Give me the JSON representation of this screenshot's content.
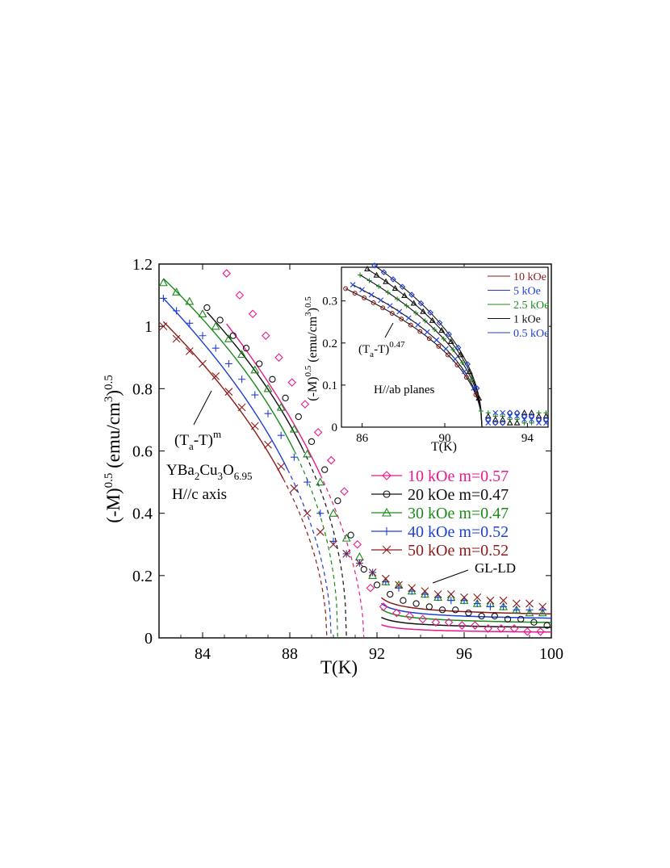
{
  "chart_data": [
    {
      "type": "scatter",
      "xlabel": "T(K)",
      "ylabel": "(-M)",
      "ylabel_sup1": "0.5",
      "ylabel_unit": " (emu/cm",
      "ylabel_sup2": "3",
      "ylabel_close": ")",
      "ylabel_sup3": "0.5",
      "xlim": [
        82,
        100
      ],
      "ylim": [
        0,
        1.2
      ],
      "xticks": [
        "84",
        "88",
        "92",
        "96",
        "100"
      ],
      "yticks": [
        "0",
        "0.2",
        "0.4",
        "0.6",
        "0.8",
        "1",
        "1.2"
      ],
      "annotations": {
        "fit_label": "(T",
        "fit_sub": "a",
        "fit_rest": "-T)",
        "fit_sup": "m",
        "compound_parts": [
          "YBa",
          "2",
          "Cu",
          "3",
          "O",
          "6.95"
        ],
        "field_dir": "H//c axis",
        "gl_ld": "GL-LD"
      },
      "series": [
        {
          "name": "10 kOe m=0.57",
          "color": "#e8198c",
          "marker": "diamond",
          "Tc": 91.4,
          "A": 0.353,
          "m": 0.57,
          "x": [
            85.1,
            85.7,
            86.3,
            86.9,
            87.5,
            88.1,
            88.7,
            89.3,
            89.9,
            90.5,
            91.1,
            91.7,
            92.3,
            92.9,
            93.5,
            94.1,
            94.7,
            95.3,
            95.9,
            96.5,
            97.1,
            97.7,
            98.3,
            98.9,
            99.5
          ],
          "y": [
            1.17,
            1.1,
            1.04,
            0.97,
            0.9,
            0.82,
            0.75,
            0.66,
            0.57,
            0.47,
            0.3,
            0.16,
            0.1,
            0.08,
            0.07,
            0.06,
            0.05,
            0.05,
            0.04,
            0.04,
            0.03,
            0.03,
            0.03,
            0.02,
            0.02
          ]
        },
        {
          "name": "20 kOe m=0.47",
          "color": "#111111",
          "marker": "circle",
          "Tc": 90.6,
          "A": 0.437,
          "m": 0.47,
          "x": [
            84.2,
            84.8,
            85.4,
            86.0,
            86.6,
            87.2,
            87.8,
            88.4,
            89.0,
            89.6,
            90.2,
            90.8,
            91.4,
            92.0,
            92.6,
            93.2,
            93.8,
            94.4,
            95.0,
            95.6,
            96.2,
            96.8,
            97.4,
            98.0,
            98.6,
            99.2,
            99.8
          ],
          "y": [
            1.06,
            1.02,
            0.97,
            0.93,
            0.88,
            0.83,
            0.77,
            0.71,
            0.63,
            0.54,
            0.44,
            0.33,
            0.22,
            0.17,
            0.14,
            0.12,
            0.11,
            0.1,
            0.09,
            0.09,
            0.08,
            0.07,
            0.07,
            0.06,
            0.06,
            0.05,
            0.04
          ]
        },
        {
          "name": "30 kOe m=0.47",
          "color": "#1a8a1a",
          "marker": "triangle",
          "Tc": 90.2,
          "A": 0.434,
          "m": 0.47,
          "x": [
            82.2,
            82.8,
            83.4,
            84.0,
            84.6,
            85.2,
            85.8,
            86.4,
            87.0,
            87.6,
            88.2,
            88.8,
            89.4,
            90.0,
            90.6,
            91.2,
            91.8,
            92.4,
            93.0,
            93.6,
            94.2,
            94.8,
            95.4,
            96.0,
            96.6,
            97.2,
            97.8,
            98.4,
            99.0,
            99.6
          ],
          "y": [
            1.14,
            1.11,
            1.08,
            1.04,
            1.0,
            0.96,
            0.91,
            0.86,
            0.8,
            0.74,
            0.67,
            0.59,
            0.5,
            0.4,
            0.32,
            0.26,
            0.2,
            0.18,
            0.17,
            0.15,
            0.14,
            0.13,
            0.13,
            0.12,
            0.11,
            0.11,
            0.1,
            0.09,
            0.08,
            0.08
          ]
        },
        {
          "name": "40 kOe m=0.52",
          "color": "#1d3fd6",
          "marker": "plus",
          "Tc": 89.9,
          "A": 0.377,
          "m": 0.52,
          "x": [
            82.2,
            82.8,
            83.4,
            84.0,
            84.6,
            85.2,
            85.8,
            86.4,
            87.0,
            87.6,
            88.2,
            88.8,
            89.4,
            90.0,
            90.6,
            91.2,
            91.8,
            92.4,
            93.0,
            93.6,
            94.2,
            94.8,
            95.4,
            96.0,
            96.6,
            97.2,
            97.8,
            98.4,
            99.0,
            99.6
          ],
          "y": [
            1.09,
            1.05,
            1.01,
            0.97,
            0.93,
            0.88,
            0.83,
            0.78,
            0.72,
            0.65,
            0.58,
            0.5,
            0.4,
            0.31,
            0.27,
            0.24,
            0.21,
            0.18,
            0.16,
            0.15,
            0.14,
            0.13,
            0.12,
            0.12,
            0.11,
            0.1,
            0.1,
            0.09,
            0.09,
            0.09
          ]
        },
        {
          "name": "50 kOe m=0.52",
          "color": "#8b1a1a",
          "marker": "cross",
          "Tc": 89.7,
          "A": 0.356,
          "m": 0.52,
          "x": [
            82.2,
            82.8,
            83.4,
            84.0,
            84.6,
            85.2,
            85.8,
            86.4,
            87.0,
            87.6,
            88.2,
            88.8,
            89.4,
            90.0,
            90.6,
            91.2,
            91.8,
            92.4,
            93.0,
            93.6,
            94.2,
            94.8,
            95.4,
            96.0,
            96.6,
            97.2,
            97.8,
            98.4,
            99.0,
            99.6
          ],
          "y": [
            1.0,
            0.96,
            0.92,
            0.88,
            0.84,
            0.79,
            0.74,
            0.68,
            0.62,
            0.55,
            0.48,
            0.4,
            0.34,
            0.3,
            0.27,
            0.24,
            0.21,
            0.19,
            0.17,
            0.16,
            0.15,
            0.14,
            0.14,
            0.13,
            0.13,
            0.12,
            0.12,
            0.11,
            0.11,
            0.1
          ]
        }
      ]
    },
    {
      "type": "scatter",
      "xlabel": "T(K)",
      "ylabel": "(-M)",
      "ylabel_sup1": "0.5",
      "ylabel_unit": " (emu/cm",
      "ylabel_sup2": "3",
      "ylabel_close": ")",
      "ylabel_sup3": "0.5",
      "xlim": [
        85,
        95
      ],
      "ylim": [
        0,
        0.38
      ],
      "xticks": [
        "86",
        "90",
        "94"
      ],
      "yticks": [
        "0",
        "0.1",
        "0.2",
        "0.3"
      ],
      "annotations": {
        "fit_label": "(T",
        "fit_sub": "a",
        "fit_rest": "-T)",
        "fit_sup": "0.47",
        "field_dir": "H//ab planes"
      },
      "series": [
        {
          "name": "10 kOe",
          "color": "#8b1a1a",
          "marker": "circle",
          "Tc": 91.8,
          "A": 0.1356,
          "m": 0.47
        },
        {
          "name": "5 kOe",
          "color": "#1d3fd6",
          "marker": "cross",
          "Tc": 91.8,
          "A": 0.143,
          "m": 0.47
        },
        {
          "name": "2.5 kOe",
          "color": "#1a8a1a",
          "marker": "plus",
          "Tc": 91.8,
          "A": 0.157,
          "m": 0.47
        },
        {
          "name": "1 kOe",
          "color": "#111111",
          "marker": "triangle",
          "Tc": 91.8,
          "A": 0.168,
          "m": 0.47
        },
        {
          "name": "0.5 kOe",
          "color": "#1d3fd6",
          "marker": "diamond",
          "Tc": 91.8,
          "A": 0.177,
          "m": 0.47
        }
      ]
    }
  ]
}
